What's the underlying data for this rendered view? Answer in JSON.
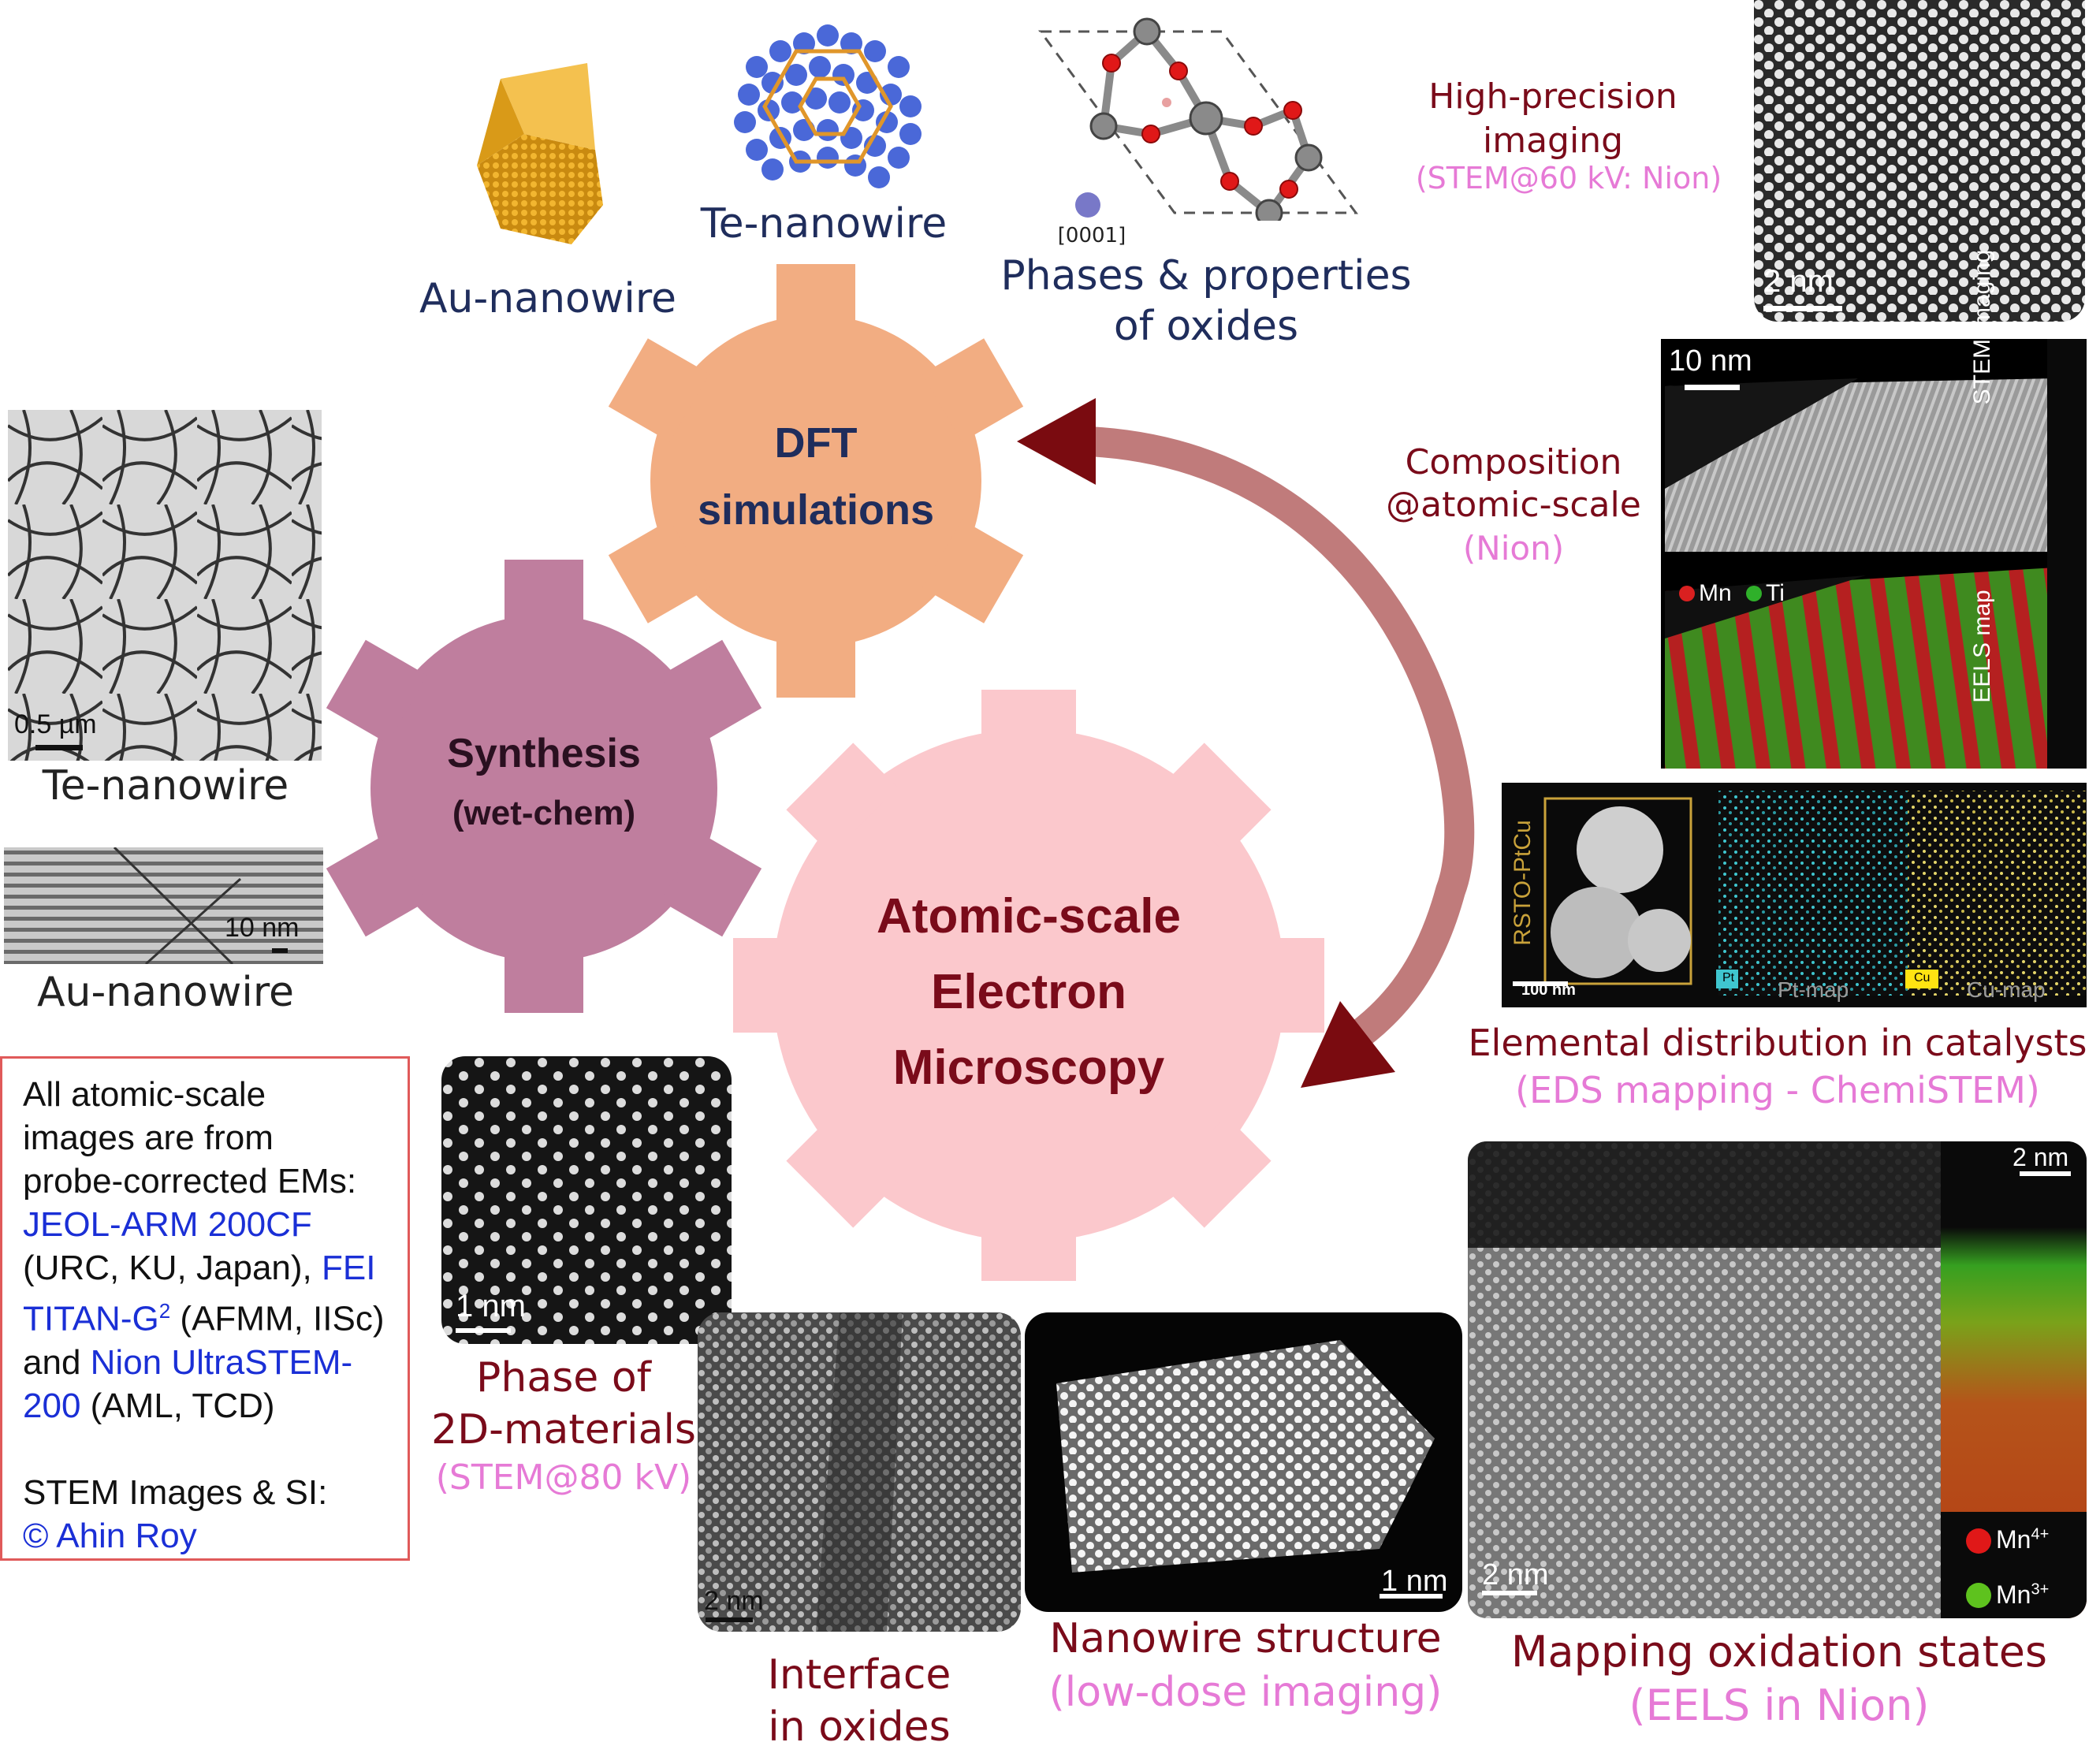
{
  "top": {
    "au_nanowire_label": "Au-nanowire",
    "te_nanowire_label": "Te-nanowire",
    "oxide_axis_label": "[0001]",
    "oxide_label_line1": "Phases & properties",
    "oxide_label_line2": "of oxides"
  },
  "gears": {
    "dft_line1": "DFT",
    "dft_line2": "simulations",
    "synthesis_line1": "Synthesis",
    "synthesis_line2": "(wet-chem)",
    "microscopy_line1": "Atomic-scale",
    "microscopy_line2": "Electron",
    "microscopy_line3": "Microscopy",
    "colors": {
      "dft": "#f2ad82",
      "synthesis": "#bf7e9e",
      "microscopy": "#fbc8cc",
      "arrow": "#c07b7b",
      "arrowhead": "#7a0b10"
    }
  },
  "left": {
    "te_scale": "0.5 µm",
    "te_label": "Te-nanowire",
    "au_scale": "10 nm",
    "au_label": "Au-nanowire"
  },
  "credits": {
    "line1": "All atomic-scale",
    "line2": "images are from",
    "line3": "probe-corrected EMs:",
    "jeol": "JEOL-ARM 200CF",
    "urc": "(URC, KU, Japan),",
    "fei": "FEI",
    "titan": "TITAN-G",
    "titan_sup": "2",
    "afmm": "(AFMM, IISc)",
    "and": "and",
    "nion1": "Nion UltraSTEM-",
    "nion2": "200",
    "aml": "(AML, TCD)",
    "stem_si": "STEM Images & SI:",
    "author": "© Ahin Roy"
  },
  "right": {
    "hp_line1": "High-precision",
    "hp_line2": "imaging",
    "hp_sub": "(STEM@60 kV: Nion)",
    "hp_scale": "2 nm",
    "comp_line1": "Composition",
    "comp_line2": "@atomic-scale",
    "comp_sub": "(Nion)",
    "eels_scale": "10 nm",
    "stem_imaging": "STEM imaging",
    "eels_map": "EELS map",
    "mn": "Mn",
    "ti": "Ti",
    "rsto": "RSTO-PtCu",
    "eds_scale": "100 nm",
    "pt": "Pt",
    "pt_map": "Pt-map",
    "cu": "Cu",
    "cu_map": "Cu-map",
    "eds_line1": "Elemental distribution in catalysts",
    "eds_sub": "(EDS mapping - ChemiSTEM)"
  },
  "bottom": {
    "phase_scale": "1 nm",
    "phase_line1": "Phase of",
    "phase_line2": "2D-materials",
    "phase_sub": "(STEM@80 kV)",
    "interface_scale": "2 nm",
    "interface_line1": "Interface",
    "interface_line2": "in oxides",
    "nanowire_scale": "1 nm",
    "nanowire_line1": "Nanowire structure",
    "nanowire_sub": "(low-dose imaging)",
    "ox_scale_top": "2 nm",
    "ox_scale_bottom": "2 nm",
    "mn4": "Mn",
    "mn4_sup": "4+",
    "mn3": "Mn",
    "mn3_sup": "3+",
    "ox_line1": "Mapping oxidation states",
    "ox_sub": "(EELS in Nion)"
  }
}
